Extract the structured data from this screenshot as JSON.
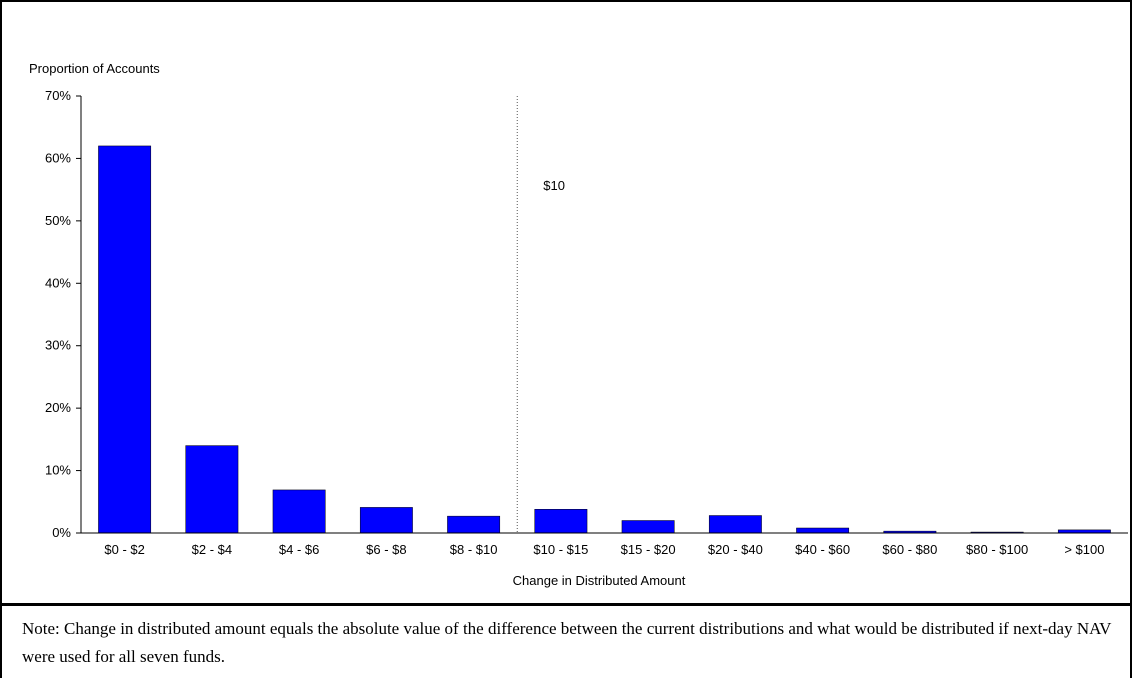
{
  "chart_data": {
    "type": "bar",
    "ylabel": "Proportion of  Accounts",
    "xlabel": "Change in Distributed Amount",
    "categories": [
      "$0 - $2",
      "$2 - $4",
      "$4 - $6",
      "$6 - $8",
      "$8 - $10",
      "$10 - $15",
      "$15 - $20",
      "$20 - $40",
      "$40 - $60",
      "$60 - $80",
      "$80 - $100",
      "> $100"
    ],
    "values": [
      62.0,
      14.0,
      6.9,
      4.1,
      2.7,
      3.8,
      2.0,
      2.8,
      0.8,
      0.3,
      0.15,
      0.5
    ],
    "ylim": [
      0,
      70
    ],
    "yticks": [
      {
        "value": 0,
        "label": "0%"
      },
      {
        "value": 10,
        "label": "10%"
      },
      {
        "value": 20,
        "label": "20%"
      },
      {
        "value": 30,
        "label": "30%"
      },
      {
        "value": 40,
        "label": "40%"
      },
      {
        "value": 50,
        "label": "50%"
      },
      {
        "value": 60,
        "label": "60%"
      },
      {
        "value": 70,
        "label": "70%"
      }
    ],
    "bar_color": "#0000FF",
    "reference_line": {
      "after_category_index": 4,
      "label": "$10"
    },
    "grid": false
  },
  "note": "Note:  Change in distributed amount equals the absolute value of the difference between the current distributions and what would be distributed if next-day NAV were used for all seven funds."
}
